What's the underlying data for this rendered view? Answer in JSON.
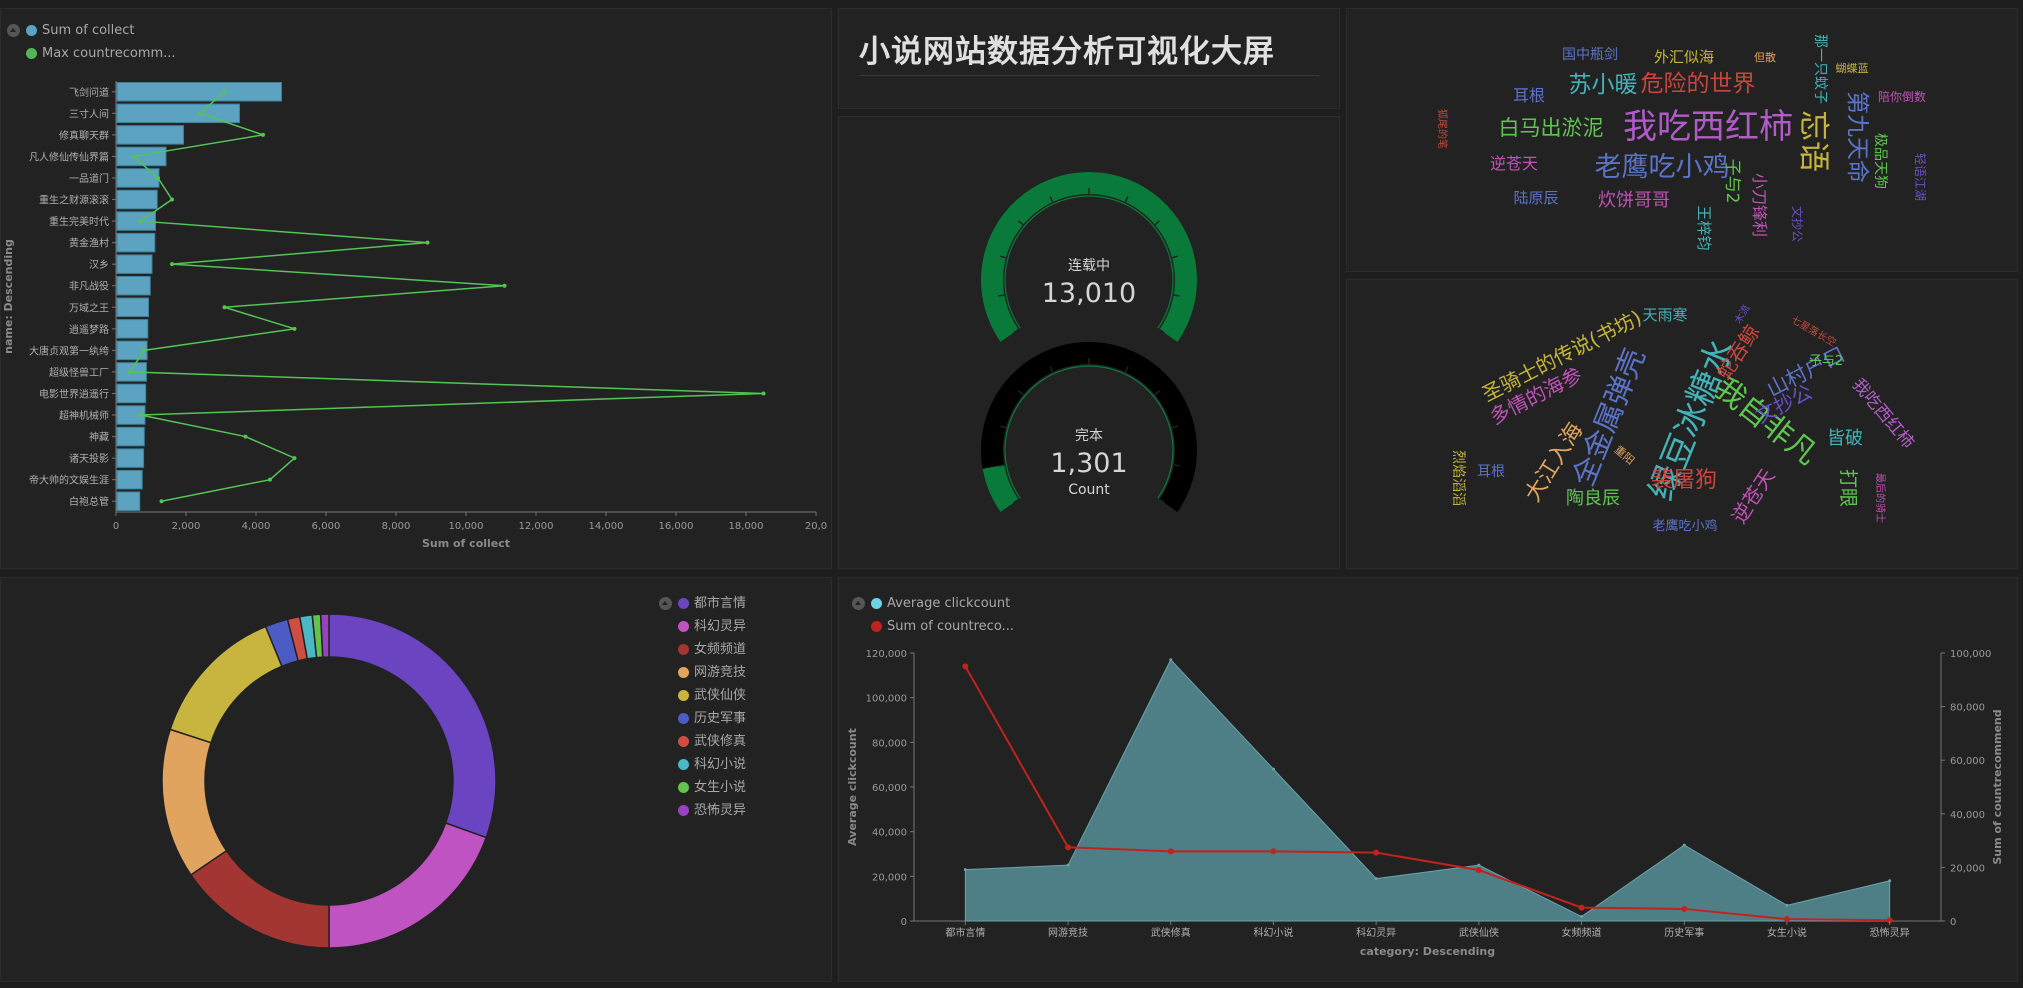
{
  "page_title": "小说网站数据分析可视化大屏",
  "chart_data": [
    {
      "id": "bar-collect",
      "type": "bar",
      "orientation": "horizontal",
      "legend": [
        {
          "label": "Sum of collect",
          "color": "#5ba3c0"
        },
        {
          "label": "Max countrecomm...",
          "color": "#54b557"
        }
      ],
      "categories": [
        "飞剑问道",
        "三寸人间",
        "修真聊天群",
        "凡人修仙传仙界篇",
        "一品道门",
        "重生之财源滚滚",
        "重生完美时代",
        "黄金渔村",
        "汉乡",
        "非凡战役",
        "万域之王",
        "逍遥梦路",
        "大唐贞观第一纨绔",
        "超级怪兽工厂",
        "电影世界逍遥行",
        "超神机械师",
        "神藏",
        "诸天投影",
        "帝大帅的文娱生涯",
        "白袍总管"
      ],
      "series": [
        {
          "name": "Sum of collect",
          "values": [
            4700,
            3500,
            1900,
            1400,
            1200,
            1150,
            1100,
            1080,
            1000,
            950,
            900,
            880,
            860,
            840,
            820,
            800,
            780,
            760,
            720,
            650
          ]
        },
        {
          "name": "Max countrecomm...",
          "values": [
            3100,
            2400,
            4200,
            500,
            1200,
            1600,
            700,
            8900,
            1600,
            11100,
            3100,
            5100,
            800,
            400,
            18500,
            700,
            3700,
            5100,
            4400,
            1300
          ]
        }
      ],
      "xlabel": "Sum of collect",
      "ylabel": "name: Descending",
      "xlim": [
        0,
        20000
      ],
      "xticks": [
        "0",
        "2,000",
        "4,000",
        "6,000",
        "8,000",
        "10,000",
        "12,000",
        "14,000",
        "16,000",
        "18,000",
        "20,0"
      ]
    },
    {
      "id": "gauges",
      "type": "gauge",
      "items": [
        {
          "label": "连载中",
          "value_text": "13,010",
          "value": 13010,
          "fill_fraction": 1.0
        },
        {
          "label": "完本",
          "value_text": "1,301",
          "value": 1301,
          "fill_fraction": 0.1
        }
      ],
      "footer": "Count"
    },
    {
      "id": "wordcloud-1",
      "type": "wordcloud",
      "words": [
        {
          "text": "我吃西红柿",
          "color": "#b05cc8"
        },
        {
          "text": "老鹰吃小鸡",
          "color": "#5b74c9"
        },
        {
          "text": "忘语",
          "color": "#c6b53a"
        },
        {
          "text": "危险的世界",
          "color": "#c9463d"
        },
        {
          "text": "苏小暖",
          "color": "#43b3b8"
        },
        {
          "text": "第九天命",
          "color": "#5b74c9"
        },
        {
          "text": "白马出淤泥",
          "color": "#5fc650"
        },
        {
          "text": "炊饼哥哥",
          "color": "#c251b8"
        },
        {
          "text": "逆苍天",
          "color": "#c251b8"
        },
        {
          "text": "子与2",
          "color": "#5fc650"
        },
        {
          "text": "小刀锋利",
          "color": "#c251b8"
        },
        {
          "text": "耳根",
          "color": "#5b74c9"
        },
        {
          "text": "陆原辰",
          "color": "#5b74c9"
        },
        {
          "text": "王梓钧",
          "color": "#43b3b8"
        },
        {
          "text": "国中瓶剑",
          "color": "#5b74c9"
        },
        {
          "text": "外汇似海",
          "color": "#c6b53a"
        },
        {
          "text": "但散",
          "color": "#e0a45e"
        },
        {
          "text": "那一只蚊子",
          "color": "#43b3b8"
        },
        {
          "text": "蝴蝶蓝",
          "color": "#c6b53a"
        },
        {
          "text": "陪你倒数",
          "color": "#c251b8"
        },
        {
          "text": "极品天狗",
          "color": "#5fc650"
        },
        {
          "text": "轻语江湖",
          "color": "#6b4fc8"
        },
        {
          "text": "文抄公",
          "color": "#6b4fc8"
        },
        {
          "text": "狐尾的笔",
          "color": "#c9463d"
        }
      ]
    },
    {
      "id": "wordcloud-2",
      "type": "wordcloud",
      "words": [
        {
          "text": "绿豆冰糖水",
          "color": "#43b3b8"
        },
        {
          "text": "我自非凡",
          "color": "#5fc650"
        },
        {
          "text": "全金属弹壳",
          "color": "#5b74c9"
        },
        {
          "text": "圣骑士的传说(书坊)",
          "color": "#c6b53a"
        },
        {
          "text": "多情的海参",
          "color": "#c251b8"
        },
        {
          "text": "大江入海",
          "color": "#e0a45e"
        },
        {
          "text": "裴屠狗",
          "color": "#c9463d"
        },
        {
          "text": "陶良辰",
          "color": "#5fc650"
        },
        {
          "text": "山村户口",
          "color": "#5b74c9"
        },
        {
          "text": "文抄公",
          "color": "#6b4fc8"
        },
        {
          "text": "蛇吞鲸",
          "color": "#c9463d"
        },
        {
          "text": "逆苍天",
          "color": "#c251b8"
        },
        {
          "text": "打眼",
          "color": "#5fc650"
        },
        {
          "text": "皆破",
          "color": "#43b3b8"
        },
        {
          "text": "我吃西红柿",
          "color": "#b05cc8"
        },
        {
          "text": "天雨寒",
          "color": "#43b3b8"
        },
        {
          "text": "子与2",
          "color": "#5fc650"
        },
        {
          "text": "耳根",
          "color": "#5b74c9"
        },
        {
          "text": "老鹰吃小鸡",
          "color": "#5b74c9"
        },
        {
          "text": "烈焰滔滔",
          "color": "#c6b53a"
        },
        {
          "text": "重阳",
          "color": "#e0a45e"
        },
        {
          "text": "七星落长空",
          "color": "#c9463d"
        },
        {
          "text": "木流",
          "color": "#6b4fc8"
        },
        {
          "text": "最后的骑士",
          "color": "#c251b8"
        }
      ]
    },
    {
      "id": "donut-category",
      "type": "pie",
      "donut": true,
      "legend": [
        {
          "label": "都市言情",
          "color": "#6b44c2"
        },
        {
          "label": "科幻灵异",
          "color": "#c053c2"
        },
        {
          "label": "女频频道",
          "color": "#a33532"
        },
        {
          "label": "网游竞技",
          "color": "#e0a45e"
        },
        {
          "label": "武侠仙侠",
          "color": "#c7b540"
        },
        {
          "label": "历史军事",
          "color": "#4b5cc4"
        },
        {
          "label": "武侠修真",
          "color": "#cf4d43"
        },
        {
          "label": "科幻小说",
          "color": "#4cb8c4"
        },
        {
          "label": "女生小说",
          "color": "#64c24f"
        },
        {
          "label": "恐怖灵异",
          "color": "#9842c2"
        }
      ],
      "values": [
        30.5,
        19.5,
        15.5,
        14.5,
        13.8,
        2.2,
        1.2,
        1.2,
        0.8,
        0.8
      ]
    },
    {
      "id": "area-click",
      "type": "area",
      "legend": [
        {
          "label": "Average clickcount",
          "color": "#6dd3e8"
        },
        {
          "label": "Sum of countreco...",
          "color": "#c0231d"
        }
      ],
      "categories": [
        "都市言情",
        "网游竞技",
        "武侠修真",
        "科幻小说",
        "科幻灵异",
        "武侠仙侠",
        "女频频道",
        "历史军事",
        "女生小说",
        "恐怖灵异"
      ],
      "series": [
        {
          "name": "Average clickcount",
          "axis": "left",
          "values": [
            23000,
            25000,
            117000,
            68000,
            19000,
            25000,
            2000,
            34000,
            7000,
            18000
          ]
        },
        {
          "name": "Sum of countreco...",
          "axis": "right",
          "values": [
            95000,
            27500,
            26000,
            26000,
            25500,
            19000,
            5000,
            4500,
            700,
            300
          ]
        }
      ],
      "xlabel": "category: Descending",
      "ylabel": "Average clickcount",
      "y2label": "Sum of countrecommend",
      "ylim": [
        0,
        120000
      ],
      "y2lim": [
        0,
        100000
      ],
      "yticks": [
        "0",
        "20,000",
        "40,000",
        "60,000",
        "80,000",
        "100,000",
        "120,000"
      ],
      "y2ticks": [
        "0",
        "20,000",
        "40,000",
        "60,000",
        "80,000",
        "100,000"
      ]
    }
  ]
}
